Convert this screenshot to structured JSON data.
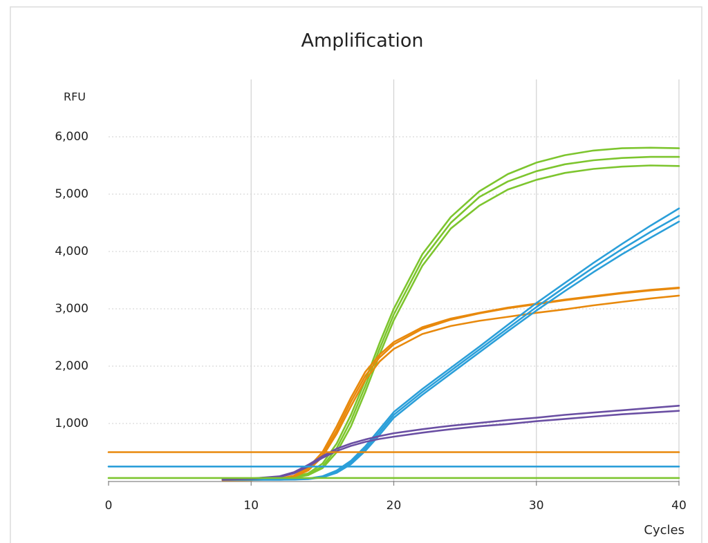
{
  "chart_data": {
    "type": "line",
    "title": "Amplification",
    "y_label": "RFU",
    "x_label": "Cycles",
    "xlim": [
      0,
      40
    ],
    "xticks": [
      0,
      10,
      20,
      30,
      40
    ],
    "ylim": [
      0,
      7000
    ],
    "yticks": [
      {
        "value": 1000,
        "label": "1,000"
      },
      {
        "value": 2000,
        "label": "2,000"
      },
      {
        "value": 3000,
        "label": "3,000"
      },
      {
        "value": 4000,
        "label": "4,000"
      },
      {
        "value": 5000,
        "label": "5,000"
      },
      {
        "value": 6000,
        "label": "6,000"
      }
    ],
    "grid": true,
    "x": [
      8,
      10,
      12,
      13,
      14,
      15,
      16,
      17,
      18,
      19,
      20,
      22,
      24,
      26,
      28,
      30,
      32,
      34,
      36,
      38,
      40
    ],
    "series": [
      {
        "color": "#7dc52e",
        "values": [
          40,
          40,
          50,
          70,
          130,
          300,
          650,
          1150,
          1750,
          2400,
          3000,
          3950,
          4600,
          5050,
          5350,
          5550,
          5680,
          5760,
          5800,
          5810,
          5800
        ]
      },
      {
        "color": "#7dc52e",
        "values": [
          40,
          40,
          45,
          60,
          110,
          250,
          570,
          1050,
          1650,
          2300,
          2900,
          3850,
          4500,
          4950,
          5220,
          5400,
          5520,
          5590,
          5630,
          5650,
          5650
        ]
      },
      {
        "color": "#7dc52e",
        "values": [
          40,
          40,
          45,
          55,
          100,
          220,
          500,
          950,
          1550,
          2200,
          2800,
          3750,
          4400,
          4800,
          5080,
          5250,
          5370,
          5440,
          5480,
          5500,
          5490
        ]
      },
      {
        "color": "#e8890c",
        "values": [
          10,
          15,
          40,
          90,
          230,
          500,
          950,
          1450,
          1900,
          2200,
          2420,
          2680,
          2830,
          2930,
          3020,
          3090,
          3160,
          3220,
          3280,
          3330,
          3370
        ]
      },
      {
        "color": "#e8890c",
        "values": [
          10,
          15,
          35,
          80,
          200,
          450,
          880,
          1380,
          1830,
          2150,
          2380,
          2650,
          2810,
          2920,
          3010,
          3080,
          3150,
          3210,
          3270,
          3320,
          3360
        ]
      },
      {
        "color": "#e8890c",
        "values": [
          10,
          15,
          30,
          70,
          180,
          420,
          820,
          1300,
          1760,
          2080,
          2300,
          2560,
          2700,
          2790,
          2860,
          2930,
          2990,
          3060,
          3120,
          3180,
          3230
        ]
      },
      {
        "color": "#2b9fd9",
        "values": [
          20,
          20,
          20,
          25,
          40,
          80,
          180,
          350,
          600,
          900,
          1200,
          1600,
          1970,
          2340,
          2720,
          3100,
          3450,
          3800,
          4130,
          4450,
          4750
        ]
      },
      {
        "color": "#2b9fd9",
        "values": [
          20,
          20,
          20,
          25,
          35,
          70,
          160,
          320,
          560,
          850,
          1150,
          1550,
          1920,
          2290,
          2660,
          3030,
          3380,
          3720,
          4040,
          4340,
          4620
        ]
      },
      {
        "color": "#2b9fd9",
        "values": [
          20,
          20,
          20,
          22,
          30,
          60,
          140,
          290,
          520,
          800,
          1100,
          1500,
          1870,
          2240,
          2610,
          2970,
          3310,
          3640,
          3950,
          4240,
          4520
        ]
      },
      {
        "color": "#6a4fa3",
        "values": [
          20,
          40,
          80,
          150,
          280,
          430,
          560,
          650,
          720,
          780,
          830,
          900,
          960,
          1010,
          1060,
          1100,
          1150,
          1190,
          1230,
          1270,
          1310
        ]
      },
      {
        "color": "#6a4fa3",
        "values": [
          20,
          35,
          70,
          130,
          250,
          400,
          520,
          610,
          680,
          730,
          770,
          840,
          900,
          950,
          990,
          1040,
          1080,
          1120,
          1160,
          1190,
          1220
        ]
      },
      {
        "color": "#e8890c",
        "x": [
          0,
          40
        ],
        "values": [
          500,
          500
        ]
      },
      {
        "color": "#2b9fd9",
        "x": [
          0,
          40
        ],
        "values": [
          250,
          250
        ]
      },
      {
        "color": "#7dc52e",
        "x": [
          0,
          40
        ],
        "values": [
          50,
          50
        ]
      }
    ]
  }
}
